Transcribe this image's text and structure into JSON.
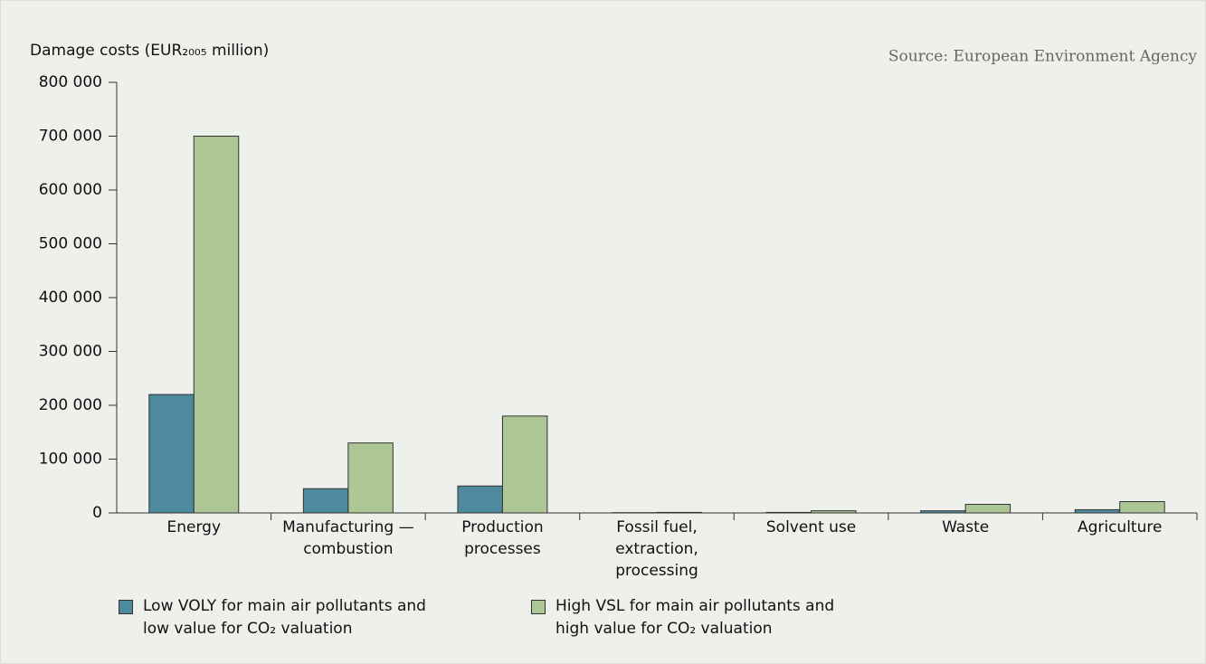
{
  "chart_data": {
    "type": "bar",
    "ylabel": "Damage costs (EUR₂₀₀₅ million)",
    "source": "Source: European Environment Agency",
    "categories": [
      "Energy",
      "Manufacturing — combustion",
      "Production processes",
      "Fossil fuel, extraction, processing",
      "Solvent use",
      "Waste",
      "Agriculture"
    ],
    "series": [
      {
        "name": "Low VOLY for main air pollutants and low value for CO₂ valuation",
        "color": "#4e8a9e",
        "values": [
          220000,
          45000,
          50000,
          500,
          1000,
          4000,
          6000
        ]
      },
      {
        "name": "High VSL for main air pollutants and high value for CO₂ valuation",
        "color": "#adc695",
        "values": [
          700000,
          130000,
          180000,
          1000,
          4000,
          16000,
          21000
        ]
      }
    ],
    "ylim": [
      0,
      800000
    ],
    "yticks": [
      0,
      {
        "value": 100000,
        "label": "100 000"
      },
      {
        "value": 200000,
        "label": "200 000"
      },
      {
        "value": 300000,
        "label": "300 000"
      },
      {
        "value": 400000,
        "label": "400 000"
      },
      {
        "value": 500000,
        "label": "500 000"
      },
      {
        "value": 600000,
        "label": "600 000"
      },
      {
        "value": 700000,
        "label": "700 000"
      },
      {
        "value": 800000,
        "label": "800 000"
      }
    ],
    "grid": false
  }
}
